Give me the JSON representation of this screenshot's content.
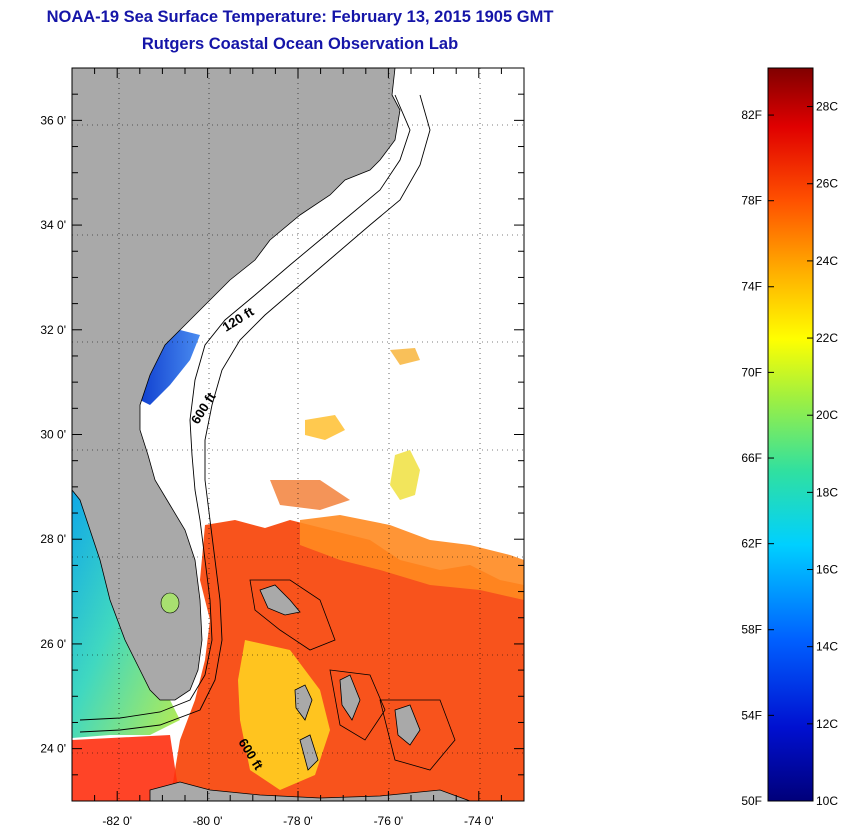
{
  "header": {
    "title": "NOAA-19 Sea Surface Temperature:  February 13, 2015 1905 GMT",
    "subtitle": "Rutgers Coastal Ocean Observation Lab"
  },
  "map": {
    "lat_range": [
      23.0,
      37.0
    ],
    "lon_range": [
      -83.0,
      -73.0
    ],
    "lat_ticks": [
      {
        "value": 36,
        "label": "36 0'"
      },
      {
        "value": 34,
        "label": "34 0'"
      },
      {
        "value": 32,
        "label": "32 0'"
      },
      {
        "value": 30,
        "label": "30 0'"
      },
      {
        "value": 28,
        "label": "28 0'"
      },
      {
        "value": 26,
        "label": "26 0'"
      },
      {
        "value": 24,
        "label": "24 0'"
      }
    ],
    "lon_ticks": [
      {
        "value": -82,
        "label": "-82 0'"
      },
      {
        "value": -80,
        "label": "-80 0'"
      },
      {
        "value": -78,
        "label": "-78 0'"
      },
      {
        "value": -76,
        "label": "-76 0'"
      },
      {
        "value": -74,
        "label": "-74 0'"
      }
    ],
    "contour_labels": {
      "shelf_120": "120 ft",
      "shelf_600_north": "600 ft",
      "shelf_600_south": "600 ft"
    },
    "colors": {
      "land": "#a9a9a9",
      "cloud": "#ffffff",
      "warm": "#ff4010",
      "cool": "#1040e0"
    }
  },
  "colorbar": {
    "min_c": 10,
    "max_c": 29,
    "fahrenheit_labels": [
      {
        "value_c": 27.78,
        "label": "82F"
      },
      {
        "value_c": 25.56,
        "label": "78F"
      },
      {
        "value_c": 23.33,
        "label": "74F"
      },
      {
        "value_c": 21.11,
        "label": "70F"
      },
      {
        "value_c": 18.89,
        "label": "66F"
      },
      {
        "value_c": 16.67,
        "label": "62F"
      },
      {
        "value_c": 14.44,
        "label": "58F"
      },
      {
        "value_c": 12.22,
        "label": "54F"
      },
      {
        "value_c": 10.0,
        "label": "50F"
      }
    ],
    "celsius_labels": [
      {
        "value_c": 28,
        "label": "28C"
      },
      {
        "value_c": 26,
        "label": "26C"
      },
      {
        "value_c": 24,
        "label": "24C"
      },
      {
        "value_c": 22,
        "label": "22C"
      },
      {
        "value_c": 20,
        "label": "20C"
      },
      {
        "value_c": 18,
        "label": "18C"
      },
      {
        "value_c": 16,
        "label": "16C"
      },
      {
        "value_c": 14,
        "label": "14C"
      },
      {
        "value_c": 12,
        "label": "12C"
      },
      {
        "value_c": 10,
        "label": "10C"
      }
    ]
  }
}
